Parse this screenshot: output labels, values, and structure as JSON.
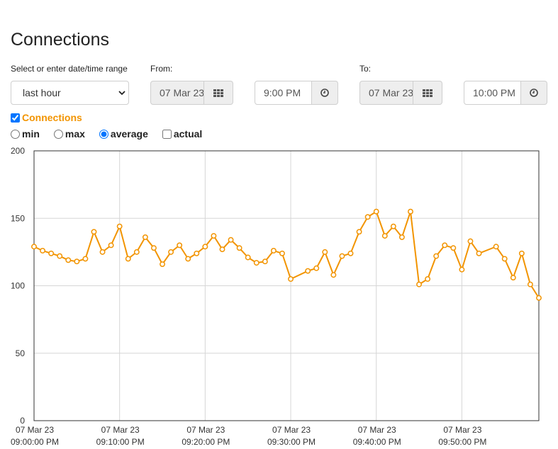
{
  "page": {
    "title": "Connections"
  },
  "controls": {
    "range_label": "Select or enter date/time range",
    "range_value": "last hour",
    "from_label": "From:",
    "from_date": "07 Mar 23",
    "from_time": "9:00 PM",
    "to_label": "To:",
    "to_date": "07 Mar 23",
    "to_time": "10:00 PM",
    "series_checkbox_label": "Connections",
    "series_checked": true,
    "modes": [
      {
        "label": "min",
        "selected": false
      },
      {
        "label": "max",
        "selected": false
      },
      {
        "label": "average",
        "selected": true
      },
      {
        "label": "actual",
        "checkbox": true,
        "checked": false
      }
    ]
  },
  "colors": {
    "series": "#f29400",
    "grid": "#d6d6d6",
    "axis": "#333333"
  },
  "icons": {
    "calendar": "calendar-grid-icon",
    "clock": "clock-icon",
    "dropdown": "chevron-down-icon"
  },
  "chart_data": {
    "type": "line",
    "title": "",
    "xlabel": "",
    "ylabel": "",
    "ylim": [
      0,
      200
    ],
    "yticks": [
      0,
      50,
      100,
      150,
      200
    ],
    "xlim": [
      "07 Mar 23 09:00:00 PM",
      "07 Mar 23 09:59:00 PM"
    ],
    "xticks": [
      {
        "minute": 0,
        "date": "07 Mar 23",
        "time": "09:00:00 PM"
      },
      {
        "minute": 10,
        "date": "07 Mar 23",
        "time": "09:10:00 PM"
      },
      {
        "minute": 20,
        "date": "07 Mar 23",
        "time": "09:20:00 PM"
      },
      {
        "minute": 30,
        "date": "07 Mar 23",
        "time": "09:30:00 PM"
      },
      {
        "minute": 40,
        "date": "07 Mar 23",
        "time": "09:40:00 PM"
      },
      {
        "minute": 50,
        "date": "07 Mar 23",
        "time": "09:50:00 PM"
      }
    ],
    "grid": true,
    "series": [
      {
        "name": "Connections",
        "x": [
          0,
          1,
          2,
          3,
          4,
          5,
          6,
          7,
          8,
          9,
          10,
          11,
          12,
          13,
          14,
          15,
          16,
          17,
          18,
          19,
          20,
          21,
          22,
          23,
          24,
          25,
          26,
          27,
          28,
          29,
          30,
          32,
          33,
          34,
          35,
          36,
          37,
          38,
          39,
          40,
          41,
          42,
          43,
          44,
          45,
          46,
          47,
          48,
          49,
          50,
          51,
          52,
          54,
          55,
          56,
          57,
          58,
          59
        ],
        "values": [
          129,
          126,
          124,
          122,
          119,
          118,
          120,
          140,
          125,
          130,
          144,
          120,
          125,
          136,
          128,
          116,
          125,
          130,
          120,
          124,
          129,
          137,
          127,
          134,
          128,
          121,
          117,
          118,
          126,
          124,
          105,
          111,
          113,
          125,
          108,
          122,
          124,
          140,
          151,
          155,
          137,
          144,
          136,
          155,
          101,
          105,
          122,
          130,
          128,
          112,
          133,
          124,
          129,
          120,
          106,
          124,
          101,
          91
        ]
      }
    ]
  }
}
